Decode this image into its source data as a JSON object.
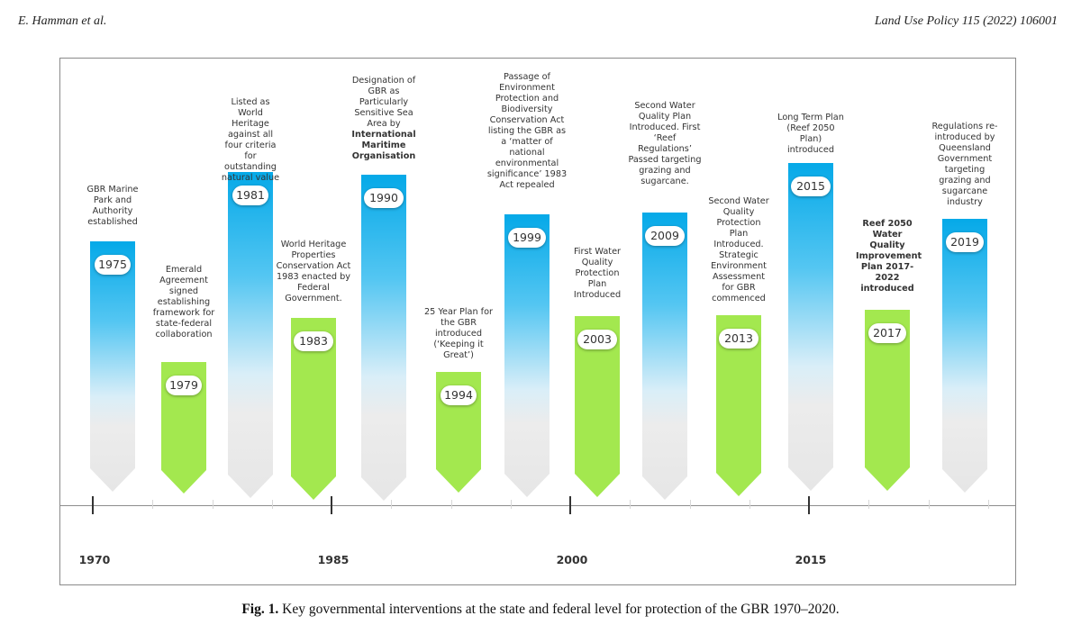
{
  "page_header": {
    "left": "E. Hamman et al.",
    "right": "Land Use Policy 115 (2022) 106001"
  },
  "figure": {
    "events": [
      {
        "year": "1975",
        "text": "GBR Marine Park and Authority established",
        "color": "blue"
      },
      {
        "year": "1979",
        "text": "Emerald Agreement signed establishing framework for state-federal collaboration",
        "color": "green"
      },
      {
        "year": "1981",
        "text": "Listed as World Heritage against all four criteria for outstanding natural value",
        "color": "blue"
      },
      {
        "year": "1983",
        "text": "World Heritage Properties Conservation Act 1983 enacted by Federal Government.",
        "color": "green"
      },
      {
        "year": "1990",
        "text": "Designation of GBR as Particularly Sensitive Sea Area by",
        "text_bold": "International Maritime Organisation",
        "color": "blue"
      },
      {
        "year": "1994",
        "text": "25 Year Plan for the GBR introduced (‘Keeping it Great’)",
        "color": "green"
      },
      {
        "year": "1999",
        "text": "Passage of Environment Protection and Biodiversity Conservation Act listing the GBR as a ‘matter of national environmental significance’ 1983 Act repealed",
        "color": "blue"
      },
      {
        "year": "2003",
        "text": "First Water Quality Protection Plan Introduced",
        "color": "green"
      },
      {
        "year": "2009",
        "text": "Second Water Quality Plan Introduced. First ‘Reef Regulations’ Passed targeting grazing and sugarcane.",
        "color": "blue"
      },
      {
        "year": "2013",
        "text": "Second Water Quality Protection Plan Introduced. Strategic Environment Assessment for GBR commenced",
        "color": "green"
      },
      {
        "year": "2015",
        "text": "Long Term Plan (Reef 2050 Plan) introduced",
        "color": "blue"
      },
      {
        "year": "2017",
        "text": "Reef 2050 Water Quality Improvement Plan 2017-2022 introduced",
        "color": "green",
        "bold": true
      },
      {
        "year": "2019",
        "text": "Regulations re-introduced by Queensland Government targeting grazing and sugarcane industry",
        "color": "blue"
      }
    ],
    "axis_labels": [
      "1970",
      "1985",
      "2000",
      "2015"
    ]
  },
  "caption": {
    "label": "Fig. 1.",
    "text": "Key governmental interventions at the state and federal level for protection of the GBR 1970–2020."
  }
}
